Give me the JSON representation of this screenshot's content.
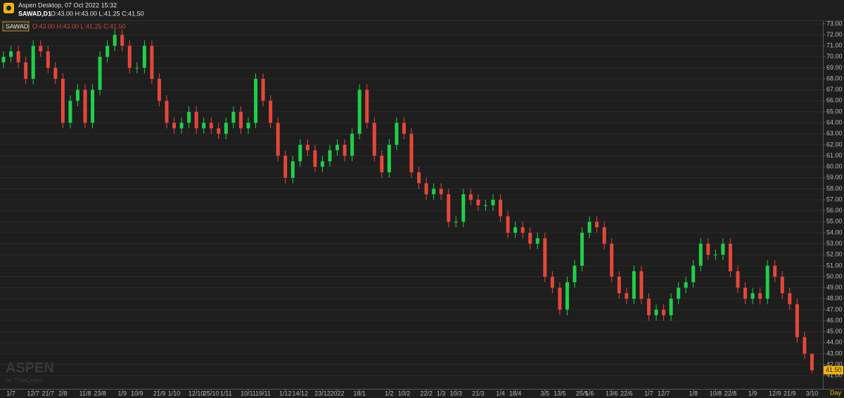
{
  "header": {
    "title": "Aspen Desktop, 07 Oct 2022 15:32",
    "symbol": "SAWAD,D1",
    "ohlc": "O:43.00 H:43.00 L:41.25 C:41.50",
    "watermark": "ASPEN",
    "watermark_sub": "by ThaiQuest"
  },
  "chart_data": {
    "type": "candlestick",
    "legend_symbol": "SAWAD",
    "x_label": "Day",
    "last_label": "41.50",
    "up_color": "#1fcf4a",
    "down_color": "#e5473a",
    "grid": true,
    "categories": [
      null,
      "1/7",
      null,
      null,
      "12/7",
      null,
      "21/7",
      null,
      "2/8",
      null,
      null,
      "11/8",
      null,
      "23/8",
      null,
      null,
      "1/9",
      null,
      "10/9",
      null,
      null,
      "21/9",
      null,
      "1/10",
      null,
      null,
      "12/10",
      null,
      "25/10",
      null,
      "1/11",
      null,
      null,
      "10/11",
      null,
      "19/11",
      null,
      null,
      "1/12",
      null,
      "14/12",
      null,
      null,
      "23/12",
      null,
      "2022",
      null,
      null,
      "18/1",
      null,
      null,
      null,
      "1/2",
      null,
      "10/2",
      null,
      null,
      "22/2",
      null,
      "1/3",
      null,
      "10/3",
      null,
      null,
      "21/3",
      null,
      null,
      "1/4",
      null,
      "18/4",
      null,
      null,
      null,
      "3/5",
      null,
      "13/5",
      null,
      null,
      "25/5",
      "1/6",
      null,
      null,
      "13/6",
      null,
      "22/6",
      null,
      null,
      "1/7",
      null,
      "12/7",
      null,
      null,
      null,
      "1/8",
      null,
      null,
      "10/8",
      null,
      "22/8",
      null,
      null,
      "1/9",
      null,
      null,
      "12/9",
      null,
      "21/9",
      null,
      null,
      "3/10"
    ],
    "open": [
      69.5,
      70,
      70.5,
      69.5,
      68,
      71,
      70.5,
      69,
      68,
      64,
      66,
      67,
      64,
      67,
      70,
      71,
      72,
      71,
      69,
      69,
      71,
      68,
      66,
      64,
      63.5,
      64,
      65,
      63.5,
      64,
      63.5,
      63,
      64,
      65,
      63.5,
      64,
      68,
      66,
      64,
      61,
      59,
      60.5,
      62,
      61.5,
      60,
      60.5,
      61.5,
      62,
      61,
      63,
      67,
      64,
      61,
      59.5,
      62,
      64,
      63,
      59.5,
      58.5,
      57.5,
      58,
      57.5,
      55,
      55,
      57.5,
      57,
      56.5,
      56.5,
      57,
      55.5,
      54,
      54.5,
      54,
      53,
      53.5,
      50,
      49,
      47,
      49.5,
      51,
      54,
      55,
      54.5,
      53,
      50,
      48.5,
      48,
      50.5,
      48,
      46.5,
      47,
      46.5,
      48,
      49,
      49.5,
      51,
      53,
      52,
      52,
      53,
      50.5,
      49,
      48,
      48.5,
      48,
      51,
      50,
      48.5,
      47.5,
      44.5,
      43
    ],
    "high": [
      70.5,
      71,
      71,
      70,
      71.5,
      71.5,
      71,
      69.5,
      68.5,
      66.5,
      67.5,
      67.5,
      67.5,
      70.5,
      71.5,
      72.5,
      72.5,
      71.5,
      69.5,
      71.5,
      71.5,
      68.5,
      66.5,
      64.5,
      64.5,
      65.5,
      65.5,
      64.5,
      64.5,
      64,
      64.5,
      65.5,
      65.5,
      64.5,
      68.5,
      68.5,
      66.5,
      64.5,
      61.5,
      61,
      62.5,
      62.5,
      62,
      61,
      62,
      62.5,
      62.5,
      63.5,
      67.5,
      67.5,
      64.5,
      61.5,
      62.5,
      64.5,
      64.5,
      63.5,
      60,
      59,
      58.5,
      58.5,
      58,
      55.5,
      58,
      58,
      57.5,
      57,
      57.5,
      57.5,
      56,
      55,
      55,
      54.5,
      54,
      54,
      50.5,
      49.5,
      50,
      51.5,
      54.5,
      55.5,
      55.5,
      55,
      53.5,
      50.5,
      49,
      51,
      51,
      48.5,
      47.5,
      47.5,
      48.5,
      49.5,
      50,
      51.5,
      53.5,
      53.5,
      52.5,
      53.5,
      53.5,
      51,
      49.5,
      49,
      49,
      51.5,
      51.5,
      50.5,
      49,
      48,
      45,
      43
    ],
    "low": [
      69,
      69.5,
      69,
      67.5,
      67.5,
      70,
      68.5,
      67.5,
      63.5,
      63.5,
      65.5,
      63.5,
      63.5,
      66.5,
      69.5,
      70.5,
      70.5,
      68.5,
      68.5,
      68.5,
      67.5,
      65.5,
      63.5,
      63,
      63,
      63.5,
      63,
      63,
      63,
      62.5,
      62.5,
      63.5,
      63,
      63,
      63.5,
      65.5,
      63.5,
      60.5,
      58.5,
      58.5,
      60,
      61,
      59.5,
      59.5,
      60,
      61,
      60.5,
      60.5,
      62.5,
      63.5,
      60.5,
      59,
      59,
      61.5,
      62.5,
      59,
      58,
      57,
      57,
      57,
      54.5,
      54.5,
      54.5,
      56.5,
      56,
      56,
      56,
      55,
      53.5,
      53.5,
      53.5,
      52.5,
      52.5,
      49.5,
      48.5,
      46.5,
      46.5,
      49,
      50.5,
      53.5,
      54,
      52.5,
      49.5,
      48,
      47.5,
      47.5,
      47.5,
      46,
      46,
      46,
      46,
      47.5,
      48.5,
      49,
      50.5,
      51.5,
      51.5,
      51.5,
      50,
      48.5,
      47.5,
      47.5,
      47.5,
      47.5,
      49.5,
      48,
      47,
      44,
      42.5,
      41.25
    ],
    "close": [
      70,
      70.5,
      69.5,
      68,
      71,
      70.5,
      69,
      68,
      64,
      66,
      67,
      64,
      67,
      70,
      71,
      72,
      71,
      69,
      69,
      71,
      68,
      66,
      64,
      63.5,
      64,
      65,
      63.5,
      64,
      63.5,
      63,
      64,
      65,
      63.5,
      64,
      68,
      66,
      64,
      61,
      59,
      60.5,
      62,
      61.5,
      60,
      60.5,
      61.5,
      62,
      61,
      63,
      67,
      64,
      61,
      59.5,
      62,
      64,
      63,
      59.5,
      58.5,
      57.5,
      58,
      57.5,
      55,
      55,
      57.5,
      57,
      56.5,
      56.5,
      57,
      55.5,
      54,
      54.5,
      54,
      53,
      53.5,
      50,
      49,
      47,
      49.5,
      51,
      54,
      55,
      54.5,
      53,
      50,
      48.5,
      48,
      50.5,
      48,
      46.5,
      47,
      46.5,
      48,
      49,
      49.5,
      51,
      53,
      52,
      52,
      53,
      50.5,
      49,
      48,
      48.5,
      48,
      51,
      50,
      48.5,
      47.5,
      44.5,
      43,
      41.5
    ],
    "ylim": [
      39.8,
      73.25
    ],
    "yticks": [
      {
        "value": 41,
        "label": "41.00"
      },
      {
        "value": 42,
        "label": "42.00"
      },
      {
        "value": 43,
        "label": "43.00"
      },
      {
        "value": 44,
        "label": "44.00"
      },
      {
        "value": 45,
        "label": "45.00"
      },
      {
        "value": 46,
        "label": "46.00"
      },
      {
        "value": 47,
        "label": "47.00"
      },
      {
        "value": 48,
        "label": "48.00"
      },
      {
        "value": 49,
        "label": "49.00"
      },
      {
        "value": 50,
        "label": "50.00"
      },
      {
        "value": 51,
        "label": "51.00"
      },
      {
        "value": 52,
        "label": "52.00"
      },
      {
        "value": 53,
        "label": "53.00"
      },
      {
        "value": 54,
        "label": "54.00"
      },
      {
        "value": 55,
        "label": "55.00"
      },
      {
        "value": 56,
        "label": "56.00"
      },
      {
        "value": 57,
        "label": "57.00"
      },
      {
        "value": 58,
        "label": "58.00"
      },
      {
        "value": 59,
        "label": "59.00"
      },
      {
        "value": 60,
        "label": "60.00"
      },
      {
        "value": 61,
        "label": "61.00"
      },
      {
        "value": 62,
        "label": "62.00"
      },
      {
        "value": 63,
        "label": "63.00"
      },
      {
        "value": 64,
        "label": "64.00"
      },
      {
        "value": 65,
        "label": "65.00"
      },
      {
        "value": 66,
        "label": "66.00"
      },
      {
        "value": 67,
        "label": "67.00"
      },
      {
        "value": 68,
        "label": "68.00"
      },
      {
        "value": 69,
        "label": "69.00"
      },
      {
        "value": 70,
        "label": "70.00"
      },
      {
        "value": 71,
        "label": "71.00"
      },
      {
        "value": 72,
        "label": "72.00"
      },
      {
        "value": 73,
        "label": "73.00"
      }
    ]
  }
}
